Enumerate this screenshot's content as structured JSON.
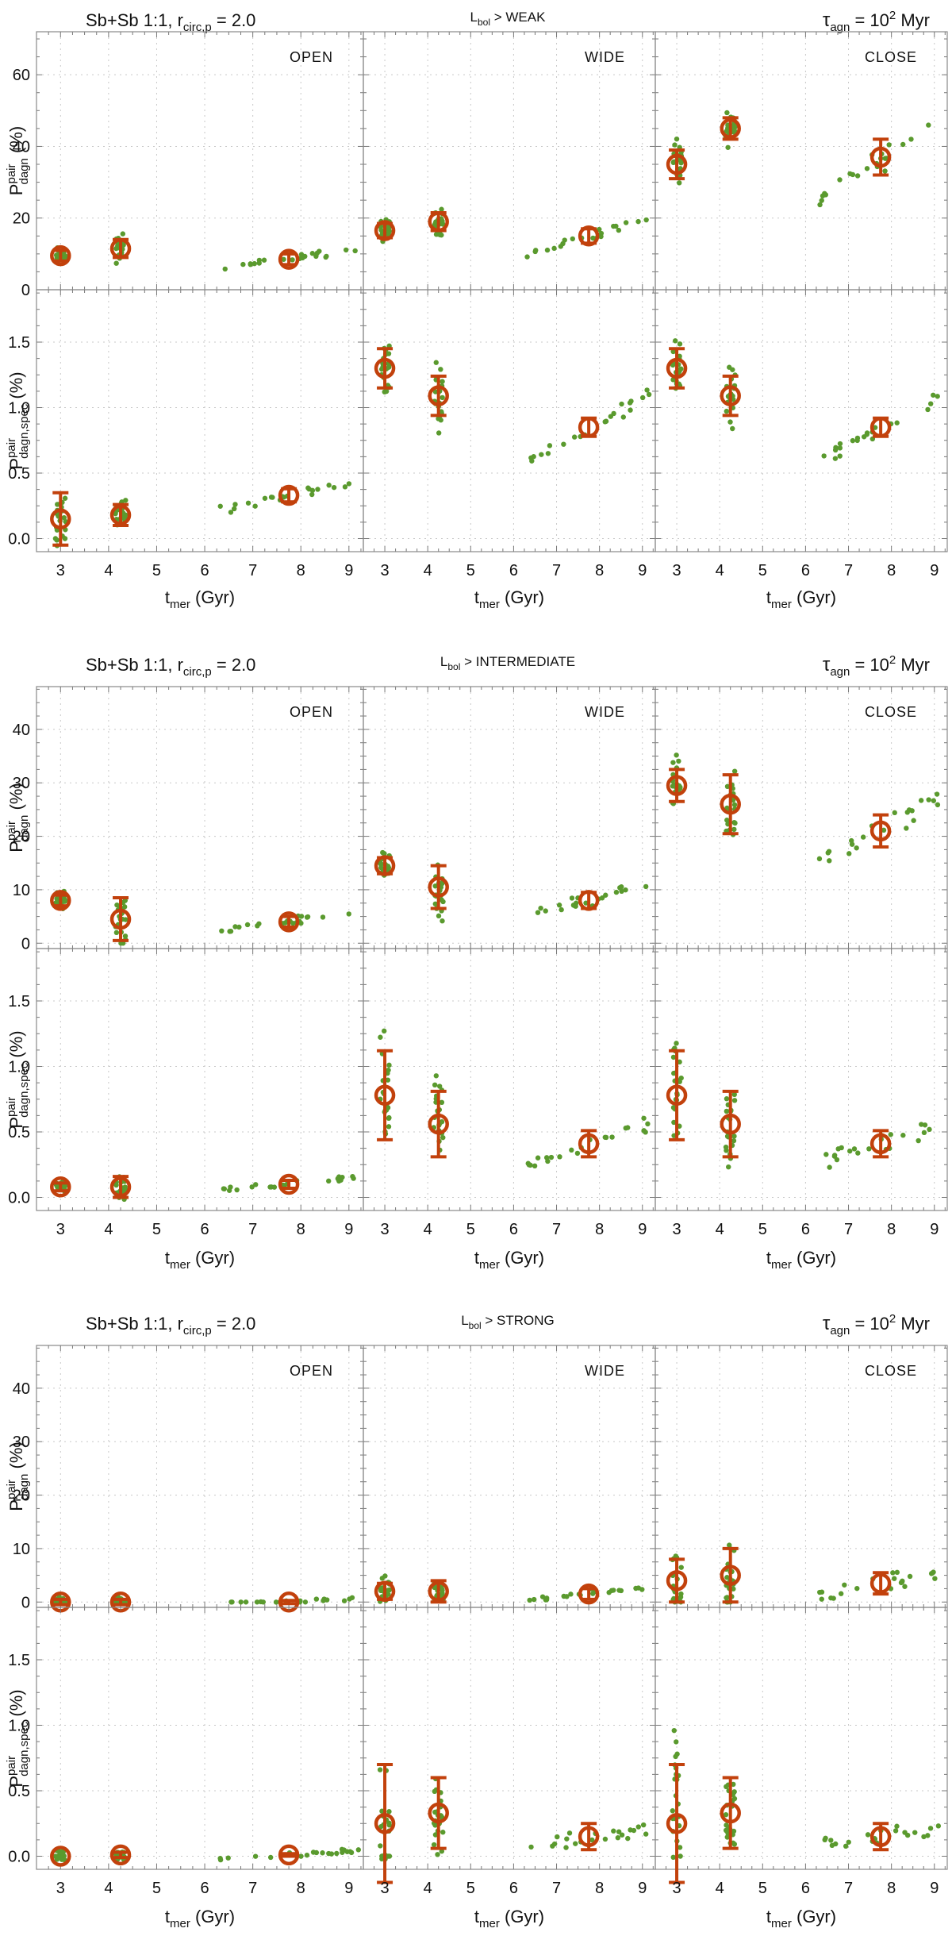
{
  "figure": {
    "rows": [
      {
        "header_left_main": "Sb+Sb 1:1, r",
        "header_left_sub": "circ,p",
        "header_left_tail": " = 2.0",
        "header_mid_main": "L",
        "header_mid_sub": "bol",
        "header_mid_tail": " > WEAK",
        "header_right_main": "τ",
        "header_right_sub": "agn",
        "header_right_mid": " = 10",
        "header_right_sup": "2",
        "header_right_tail": " Myr"
      },
      {
        "header_left_main": "Sb+Sb 1:1, r",
        "header_left_sub": "circ,p",
        "header_left_tail": " = 2.0",
        "header_mid_main": "L",
        "header_mid_sub": "bol",
        "header_mid_tail": " > INTERMEDIATE",
        "header_right_main": "τ",
        "header_right_sub": "agn",
        "header_right_mid": " = 10",
        "header_right_sup": "2",
        "header_right_tail": " Myr"
      },
      {
        "header_left_main": "Sb+Sb 1:1, r",
        "header_left_sub": "circ,p",
        "header_left_tail": " = 2.0",
        "header_mid_main": "L",
        "header_mid_sub": "bol",
        "header_mid_tail": " > STRONG",
        "header_right_main": "τ",
        "header_right_sub": "agn",
        "header_right_mid": " = 10",
        "header_right_sup": "2",
        "header_right_tail": " Myr"
      }
    ],
    "column_labels": [
      "OPEN",
      "WIDE",
      "CLOSE"
    ],
    "ylabel_top_main": "P",
    "ylabel_top_sup": "pair",
    "ylabel_top_sub": "dagn",
    "ylabel_top_tail": " (%)",
    "ylabel_bottom_main": "P",
    "ylabel_bottom_sup": "pair",
    "ylabel_bottom_sub": "dagn,spec",
    "ylabel_bottom_tail": " (%)",
    "xlabel_main": "t",
    "xlabel_sub": "mer",
    "xlabel_tail": " (Gyr)"
  },
  "chart_data": {
    "type": "scatter",
    "description_free": true,
    "xlim": [
      2.5,
      9.3
    ],
    "x_ticks": [
      3,
      4,
      5,
      6,
      7,
      8,
      9
    ],
    "rows": [
      {
        "top": {
          "ylim": [
            0,
            72
          ],
          "y_ticks": [
            0,
            20,
            40,
            60
          ],
          "panels": [
            {
              "means": [
                [
                  3.0,
                  9.5,
                  1.5
                ],
                [
                  4.25,
                  11.5,
                  2.5
                ],
                [
                  7.75,
                  8.5,
                  1.5
                ]
              ]
            },
            {
              "means": [
                [
                  3.0,
                  16.5,
                  2.0
                ],
                [
                  4.25,
                  19.0,
                  2.5
                ],
                [
                  7.75,
                  15.0,
                  2.0
                ]
              ]
            },
            {
              "means": [
                [
                  3.0,
                  35.0,
                  4.0
                ],
                [
                  4.25,
                  45.0,
                  3.0
                ],
                [
                  7.75,
                  37.0,
                  5.0
                ]
              ]
            }
          ]
        },
        "bottom": {
          "ylim": [
            -0.1,
            1.9
          ],
          "y_ticks": [
            0.0,
            0.5,
            1.0,
            1.5
          ],
          "panels": [
            {
              "means": [
                [
                  3.0,
                  0.15,
                  0.2
                ],
                [
                  4.25,
                  0.18,
                  0.08
                ],
                [
                  7.75,
                  0.33,
                  0.05
                ]
              ]
            },
            {
              "means": [
                [
                  3.0,
                  1.3,
                  0.15
                ],
                [
                  4.25,
                  1.09,
                  0.15
                ],
                [
                  7.75,
                  0.85,
                  0.07
                ]
              ]
            },
            {
              "means": [
                [
                  3.0,
                  1.3,
                  0.15
                ],
                [
                  4.25,
                  1.09,
                  0.15
                ],
                [
                  7.75,
                  0.85,
                  0.07
                ]
              ]
            }
          ]
        }
      },
      {
        "top": {
          "ylim": [
            -1,
            48
          ],
          "y_ticks": [
            0,
            10,
            20,
            30,
            40
          ],
          "panels": [
            {
              "means": [
                [
                  3.0,
                  8.0,
                  1.0
                ],
                [
                  4.25,
                  4.5,
                  4.0
                ],
                [
                  7.75,
                  4.0,
                  1.0
                ]
              ]
            },
            {
              "means": [
                [
                  3.0,
                  14.5,
                  1.5
                ],
                [
                  4.25,
                  10.5,
                  4.0
                ],
                [
                  7.75,
                  8.0,
                  1.5
                ]
              ]
            },
            {
              "means": [
                [
                  3.0,
                  29.5,
                  3.0
                ],
                [
                  4.25,
                  26.0,
                  5.5
                ],
                [
                  7.75,
                  21.0,
                  3.0
                ]
              ]
            }
          ]
        },
        "bottom": {
          "ylim": [
            -0.1,
            1.9
          ],
          "y_ticks": [
            0.0,
            0.5,
            1.0,
            1.5
          ],
          "panels": [
            {
              "means": [
                [
                  3.0,
                  0.08,
                  0.03
                ],
                [
                  4.25,
                  0.08,
                  0.08
                ],
                [
                  7.75,
                  0.1,
                  0.03
                ]
              ]
            },
            {
              "means": [
                [
                  3.0,
                  0.78,
                  0.34
                ],
                [
                  4.25,
                  0.56,
                  0.25
                ],
                [
                  7.75,
                  0.41,
                  0.1
                ]
              ]
            },
            {
              "means": [
                [
                  3.0,
                  0.78,
                  0.34
                ],
                [
                  4.25,
                  0.56,
                  0.25
                ],
                [
                  7.75,
                  0.41,
                  0.1
                ]
              ]
            }
          ]
        }
      },
      {
        "top": {
          "ylim": [
            -1,
            48
          ],
          "y_ticks": [
            0,
            10,
            20,
            30,
            40
          ],
          "panels": [
            {
              "means": [
                [
                  3.0,
                  0.0,
                  0.5
                ],
                [
                  4.25,
                  0.0,
                  0.5
                ],
                [
                  7.75,
                  0.0,
                  0.3
                ]
              ]
            },
            {
              "means": [
                [
                  3.0,
                  2.0,
                  1.5
                ],
                [
                  4.25,
                  2.0,
                  2.0
                ],
                [
                  7.75,
                  1.5,
                  1.0
                ]
              ]
            },
            {
              "means": [
                [
                  3.0,
                  4.0,
                  4.0
                ],
                [
                  4.25,
                  5.0,
                  5.0
                ],
                [
                  7.75,
                  3.5,
                  2.0
                ]
              ]
            }
          ]
        },
        "bottom": {
          "ylim": [
            -0.1,
            1.9
          ],
          "y_ticks": [
            0.0,
            0.5,
            1.0,
            1.5
          ],
          "panels": [
            {
              "means": [
                [
                  3.0,
                  0.0,
                  0.0
                ],
                [
                  4.25,
                  0.01,
                  0.02
                ],
                [
                  7.75,
                  0.01,
                  0.01
                ]
              ]
            },
            {
              "means": [
                [
                  3.0,
                  0.25,
                  0.45
                ],
                [
                  4.25,
                  0.33,
                  0.27
                ],
                [
                  7.75,
                  0.15,
                  0.1
                ]
              ]
            },
            {
              "means": [
                [
                  3.0,
                  0.25,
                  0.45
                ],
                [
                  4.25,
                  0.33,
                  0.27
                ],
                [
                  7.75,
                  0.15,
                  0.1
                ]
              ]
            }
          ]
        }
      }
    ],
    "scatter_series_note": "green points: individual realizations clustered around each mean",
    "marker_colors": {
      "points": "#5a9a2e",
      "means": "#c2410c"
    }
  }
}
